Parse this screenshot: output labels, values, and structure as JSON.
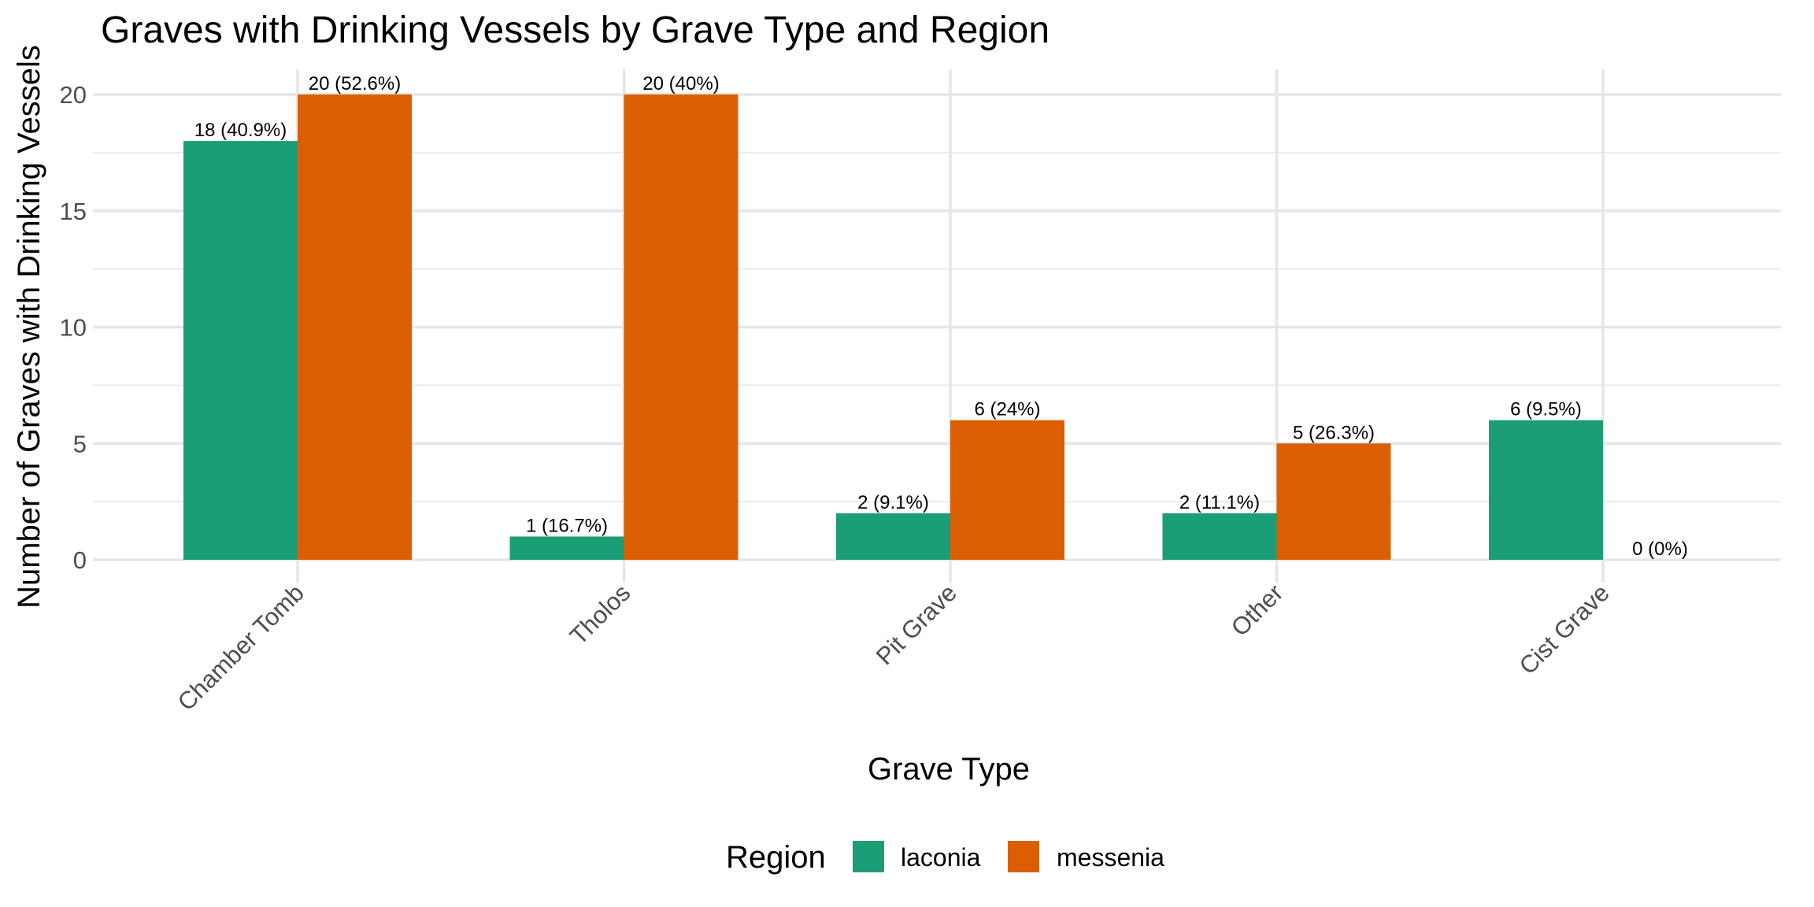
{
  "chart_data": {
    "type": "bar",
    "title": "Graves with Drinking Vessels by Grave Type and Region",
    "xlabel": "Grave Type",
    "ylabel": "Number of Graves with Drinking Vessels",
    "ylim": [
      0,
      21
    ],
    "yticks": [
      0,
      5,
      10,
      15,
      20
    ],
    "grid": true,
    "categories": [
      "Chamber Tomb",
      "Tholos",
      "Pit Grave",
      "Other",
      "Cist Grave"
    ],
    "series": [
      {
        "name": "laconia",
        "color": "#1B9E77",
        "values": [
          18,
          1,
          2,
          2,
          6
        ],
        "labels": [
          "18 (40.9%)",
          "1 (16.7%)",
          "2 (9.1%)",
          "2 (11.1%)",
          "6 (9.5%)"
        ]
      },
      {
        "name": "messenia",
        "color": "#D95F02",
        "values": [
          20,
          20,
          6,
          5,
          0
        ],
        "labels": [
          "20 (52.6%)",
          "20 (40%)",
          "6 (24%)",
          "5 (26.3%)",
          "0 (0%)"
        ]
      }
    ],
    "legend": {
      "title": "Region",
      "position": "bottom"
    }
  }
}
